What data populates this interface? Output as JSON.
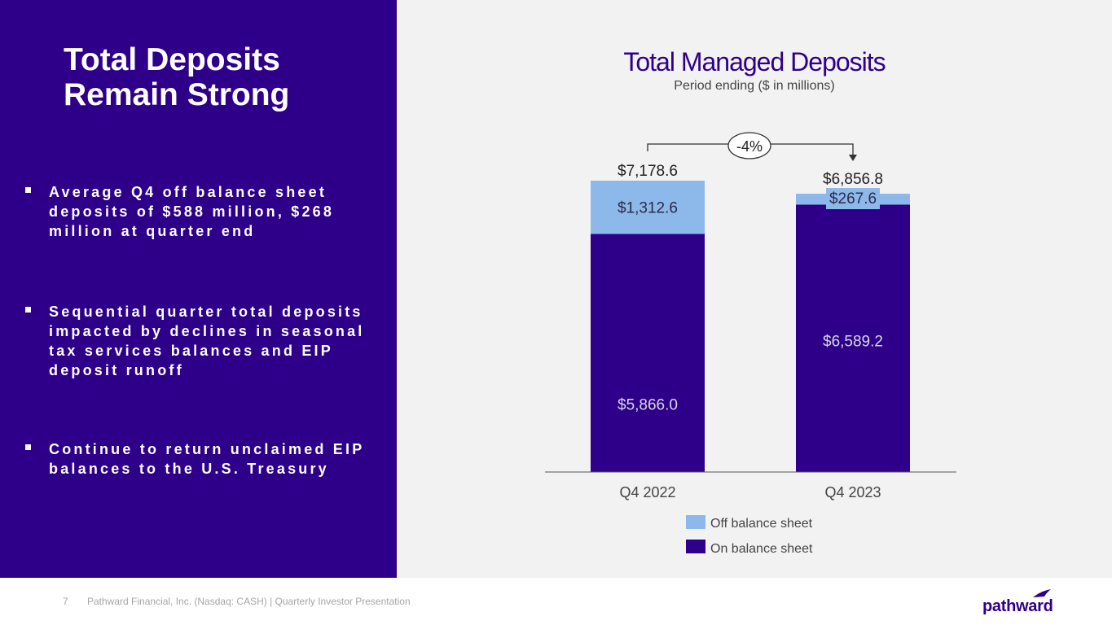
{
  "slide": {
    "title_line1": "Total Deposits",
    "title_line2": "Remain Strong",
    "bullets": [
      {
        "lines": [
          "Average Q4 off balance sheet",
          "deposits of $588 million, $268",
          "million at quarter end"
        ]
      },
      {
        "lines": [
          "Sequential quarter total deposits",
          "impacted by declines in seasonal",
          "tax services balances and EIP",
          "deposit runoff"
        ]
      },
      {
        "lines": [
          "Continue to return unclaimed EIP",
          "balances to the U.S. Treasury"
        ]
      }
    ]
  },
  "footer": {
    "page_number": "7",
    "text": "Pathward Financial, Inc. (Nasdaq: CASH) | Quarterly Investor Presentation",
    "logo_text": "pathward"
  },
  "colors": {
    "on_balance": "#2e0089",
    "off_balance": "#8db8ea",
    "panel_bg": "#f2f2f2"
  },
  "chart_data": {
    "type": "bar",
    "stacked": true,
    "title": "Total Managed Deposits",
    "subtitle": "Period ending ($ in millions)",
    "categories": [
      "Q4 2022",
      "Q4 2023"
    ],
    "series": [
      {
        "name": "On balance sheet",
        "values": [
          5866.0,
          6589.2
        ],
        "labels": [
          "$5,866.0",
          "$6,589.2"
        ]
      },
      {
        "name": "Off balance sheet",
        "values": [
          1312.6,
          267.6
        ],
        "labels": [
          "$1,312.6",
          "$267.6"
        ]
      }
    ],
    "totals": [
      7178.6,
      6856.8
    ],
    "total_labels": [
      "$7,178.6",
      "$6,856.8"
    ],
    "change_label": "-4%",
    "legend": [
      "Off balance sheet",
      "On balance sheet"
    ],
    "legend_position": "bottom-center",
    "ylim": [
      0,
      7178.6
    ]
  }
}
